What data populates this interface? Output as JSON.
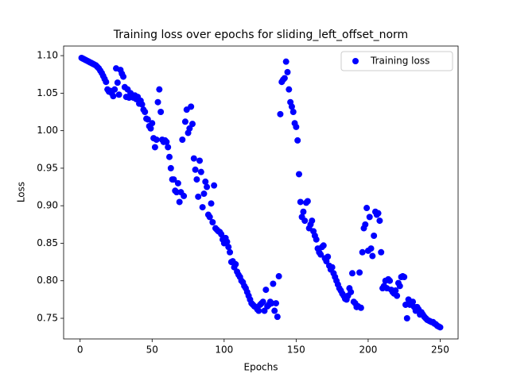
{
  "chart_data": {
    "type": "scatter",
    "title": "Training loss over epochs for sliding_left_offset_norm",
    "x_label": "Epochs",
    "y_label": "Loss",
    "legend": "upper right",
    "xlim": [
      -11.45,
      262.45
    ],
    "ylim": [
      0.7225,
      1.1128
    ],
    "xticks": [
      0,
      50,
      100,
      150,
      200,
      250
    ],
    "yticks": [
      0.75,
      {
        "value": 0.8,
        "label": "0.80"
      },
      0.85,
      {
        "value": 0.9,
        "label": "0.90"
      },
      0.95,
      {
        "value": 1.0,
        "label": "1.00"
      },
      1.05,
      {
        "value": 1.1,
        "label": "1.10"
      }
    ],
    "series": [
      {
        "name": "Training loss",
        "color": "#0000ff",
        "x": [
          1,
          2,
          3,
          4,
          5,
          6,
          7,
          8,
          9,
          10,
          11,
          12,
          13,
          14,
          15,
          16,
          17,
          18,
          19,
          20,
          21,
          22,
          23,
          24,
          25,
          26,
          27,
          28,
          29,
          30,
          31,
          32,
          33,
          34,
          35,
          36,
          37,
          38,
          39,
          40,
          41,
          42,
          43,
          44,
          45,
          46,
          47,
          48,
          49,
          50,
          51,
          52,
          53,
          54,
          55,
          56,
          57,
          58,
          59,
          60,
          61,
          62,
          63,
          64,
          65,
          66,
          67,
          68,
          69,
          70,
          71,
          72,
          73,
          74,
          75,
          76,
          77,
          78,
          79,
          80,
          81,
          82,
          83,
          84,
          85,
          86,
          87,
          88,
          89,
          90,
          91,
          92,
          93,
          94,
          95,
          96,
          97,
          98,
          99,
          100,
          101,
          102,
          103,
          104,
          105,
          106,
          107,
          108,
          109,
          110,
          111,
          112,
          113,
          114,
          115,
          116,
          117,
          118,
          119,
          120,
          121,
          122,
          123,
          124,
          125,
          126,
          127,
          128,
          129,
          130,
          131,
          132,
          133,
          134,
          135,
          136,
          137,
          138,
          139,
          140,
          141,
          142,
          143,
          144,
          145,
          146,
          147,
          148,
          149,
          150,
          151,
          152,
          153,
          154,
          155,
          156,
          157,
          158,
          159,
          160,
          161,
          162,
          163,
          164,
          165,
          166,
          167,
          168,
          169,
          170,
          171,
          172,
          173,
          174,
          175,
          176,
          177,
          178,
          179,
          180,
          181,
          182,
          183,
          184,
          185,
          186,
          187,
          188,
          189,
          190,
          191,
          192,
          193,
          194,
          195,
          196,
          197,
          198,
          199,
          200,
          201,
          202,
          203,
          204,
          205,
          206,
          207,
          208,
          209,
          210,
          211,
          212,
          213,
          214,
          215,
          216,
          217,
          218,
          219,
          220,
          221,
          222,
          223,
          224,
          225,
          226,
          227,
          228,
          229,
          230,
          231,
          232,
          233,
          234,
          235,
          236,
          237,
          238,
          239,
          240,
          241,
          242,
          243,
          244,
          245,
          246,
          247,
          248,
          249,
          250
        ],
        "values": [
          1.097,
          1.096,
          1.095,
          1.094,
          1.093,
          1.092,
          1.091,
          1.09,
          1.089,
          1.088,
          1.087,
          1.085,
          1.083,
          1.08,
          1.077,
          1.073,
          1.069,
          1.065,
          1.055,
          1.052,
          1.053,
          1.05,
          1.046,
          1.055,
          1.083,
          1.064,
          1.048,
          1.081,
          1.076,
          1.072,
          1.058,
          1.045,
          1.055,
          1.044,
          1.05,
          1.046,
          1.044,
          1.047,
          1.042,
          1.045,
          1.036,
          1.04,
          1.035,
          1.028,
          1.025,
          1.016,
          1.015,
          1.006,
          1.003,
          1.01,
          0.99,
          0.978,
          0.988,
          1.038,
          1.055,
          1.025,
          0.988,
          0.985,
          0.987,
          0.985,
          0.978,
          0.965,
          0.95,
          0.935,
          0.935,
          0.92,
          0.918,
          0.93,
          0.905,
          0.918,
          0.988,
          0.913,
          1.012,
          1.028,
          0.997,
          1.003,
          1.032,
          1.009,
          0.963,
          0.948,
          0.935,
          0.912,
          0.96,
          0.945,
          0.898,
          0.916,
          0.932,
          0.925,
          0.888,
          0.885,
          0.903,
          0.878,
          0.927,
          0.87,
          0.868,
          0.866,
          0.865,
          0.862,
          0.855,
          0.85,
          0.857,
          0.852,
          0.845,
          0.838,
          0.825,
          0.826,
          0.818,
          0.822,
          0.812,
          0.808,
          0.805,
          0.8,
          0.798,
          0.793,
          0.79,
          0.785,
          0.78,
          0.775,
          0.77,
          0.768,
          0.766,
          0.765,
          0.762,
          0.76,
          0.768,
          0.77,
          0.772,
          0.76,
          0.788,
          0.766,
          0.768,
          0.772,
          0.77,
          0.796,
          0.76,
          0.77,
          0.752,
          0.806,
          1.022,
          1.065,
          1.068,
          1.07,
          1.092,
          1.078,
          1.055,
          1.038,
          1.032,
          1.025,
          1.01,
          1.005,
          0.987,
          0.942,
          0.905,
          0.885,
          0.892,
          0.88,
          0.904,
          0.906,
          0.87,
          0.875,
          0.88,
          0.866,
          0.86,
          0.855,
          0.843,
          0.838,
          0.835,
          0.845,
          0.847,
          0.83,
          0.826,
          0.832,
          0.82,
          0.815,
          0.818,
          0.81,
          0.805,
          0.8,
          0.795,
          0.79,
          0.787,
          0.783,
          0.78,
          0.776,
          0.775,
          0.78,
          0.79,
          0.785,
          0.81,
          0.772,
          0.77,
          0.765,
          0.766,
          0.811,
          0.764,
          0.838,
          0.87,
          0.875,
          0.897,
          0.84,
          0.885,
          0.843,
          0.833,
          0.86,
          0.892,
          0.888,
          0.89,
          0.88,
          0.838,
          0.79,
          0.793,
          0.8,
          0.79,
          0.802,
          0.8,
          0.788,
          0.785,
          0.783,
          0.787,
          0.78,
          0.797,
          0.793,
          0.805,
          0.806,
          0.805,
          0.768,
          0.75,
          0.775,
          0.768,
          0.77,
          0.772,
          0.765,
          0.76,
          0.765,
          0.762,
          0.755,
          0.758,
          0.755,
          0.752,
          0.75,
          0.748,
          0.747,
          0.746,
          0.745,
          0.745,
          0.743,
          0.742,
          0.74,
          0.739,
          0.738
        ]
      }
    ]
  }
}
